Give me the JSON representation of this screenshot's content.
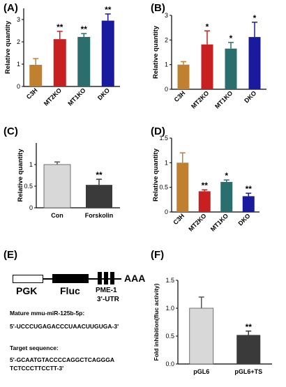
{
  "panel_labels": [
    "(A)",
    "(B)",
    "(C)",
    "(D)",
    "(E)",
    "(F)"
  ],
  "colors": {
    "C3H": "#c08030",
    "MT2KO": "#c82020",
    "MT1KO": "#2a6e6e",
    "DKO": "#1a1a9e",
    "light_gray": "#d8d8d8",
    "dark_gray": "#3a3a3a",
    "axis": "#000000"
  },
  "construct": {
    "pgk": "PGK",
    "fluc": "Fluc",
    "pme1": "PME-1",
    "utr": "3'-UTR",
    "polya": "AAA",
    "mature_title": "Mature mmu-miR-125b-5p:",
    "mature_seq": "5'-UCCCUGAGACCCUAACUUGUGA-3'",
    "target_title": "Target sequence:",
    "target_seq_1": "5'-GCAATGTACCCCAGGCTCAGGGA",
    "target_seq_2": "TCTCCCTTCCTT-3'"
  },
  "chart_data": [
    {
      "panel": "(A)",
      "type": "bar",
      "ylabel": "Relative quantity",
      "ylim": [
        0,
        3.5
      ],
      "yticks": [
        0,
        1,
        2,
        3
      ],
      "categories": [
        "C3H",
        "MT2KO",
        "MT1KO",
        "DKO"
      ],
      "values": [
        0.97,
        2.12,
        2.22,
        2.95
      ],
      "errors": [
        0.28,
        0.35,
        0.15,
        0.3
      ],
      "significance": [
        "",
        "**",
        "**",
        "**"
      ],
      "colors": [
        "#c08030",
        "#c82020",
        "#2a6e6e",
        "#1a1a9e"
      ]
    },
    {
      "panel": "(B)",
      "type": "bar",
      "ylabel": "Relative quantity",
      "ylim": [
        0,
        3
      ],
      "yticks": [
        0,
        1,
        2,
        3
      ],
      "categories": [
        "C3H",
        "MT2KO",
        "MT1KO",
        "DKO"
      ],
      "values": [
        1.0,
        1.82,
        1.65,
        2.12
      ],
      "errors": [
        0.12,
        0.55,
        0.25,
        0.6
      ],
      "significance": [
        "",
        "*",
        "*",
        "*"
      ],
      "colors": [
        "#c08030",
        "#c82020",
        "#2a6e6e",
        "#1a1a9e"
      ]
    },
    {
      "panel": "(C)",
      "type": "bar",
      "ylabel": "Relative quantity",
      "ylim": [
        0,
        1.5
      ],
      "yticks": [
        0,
        0.5,
        1
      ],
      "categories": [
        "Con",
        "Forskolin"
      ],
      "values": [
        1.0,
        0.53
      ],
      "errors": [
        0.06,
        0.13
      ],
      "significance": [
        "",
        "**"
      ],
      "colors": [
        "#d8d8d8",
        "#3a3a3a"
      ]
    },
    {
      "panel": "(D)",
      "type": "bar",
      "ylabel": "Relative quantity",
      "ylim": [
        0,
        1.5
      ],
      "yticks": [
        0,
        0.5,
        1,
        1.5
      ],
      "categories": [
        "C3H",
        "MT2KO",
        "MT1KO",
        "DKO"
      ],
      "values": [
        1.0,
        0.42,
        0.61,
        0.32
      ],
      "errors": [
        0.2,
        0.03,
        0.04,
        0.06
      ],
      "significance": [
        "",
        "**",
        "*",
        "**"
      ],
      "colors": [
        "#c08030",
        "#c82020",
        "#2a6e6e",
        "#1a1a9e"
      ]
    },
    {
      "panel": "(F)",
      "type": "bar",
      "ylabel": "Fold inhibition(fluc activity)",
      "ylim": [
        0,
        1.5
      ],
      "yticks": [
        0.0,
        0.5,
        1.0,
        1.5
      ],
      "categories": [
        "pGL6",
        "pGL6+TS"
      ],
      "values": [
        1.0,
        0.52
      ],
      "errors": [
        0.2,
        0.07
      ],
      "significance": [
        "",
        "**"
      ],
      "colors": [
        "#d8d8d8",
        "#3a3a3a"
      ]
    }
  ]
}
